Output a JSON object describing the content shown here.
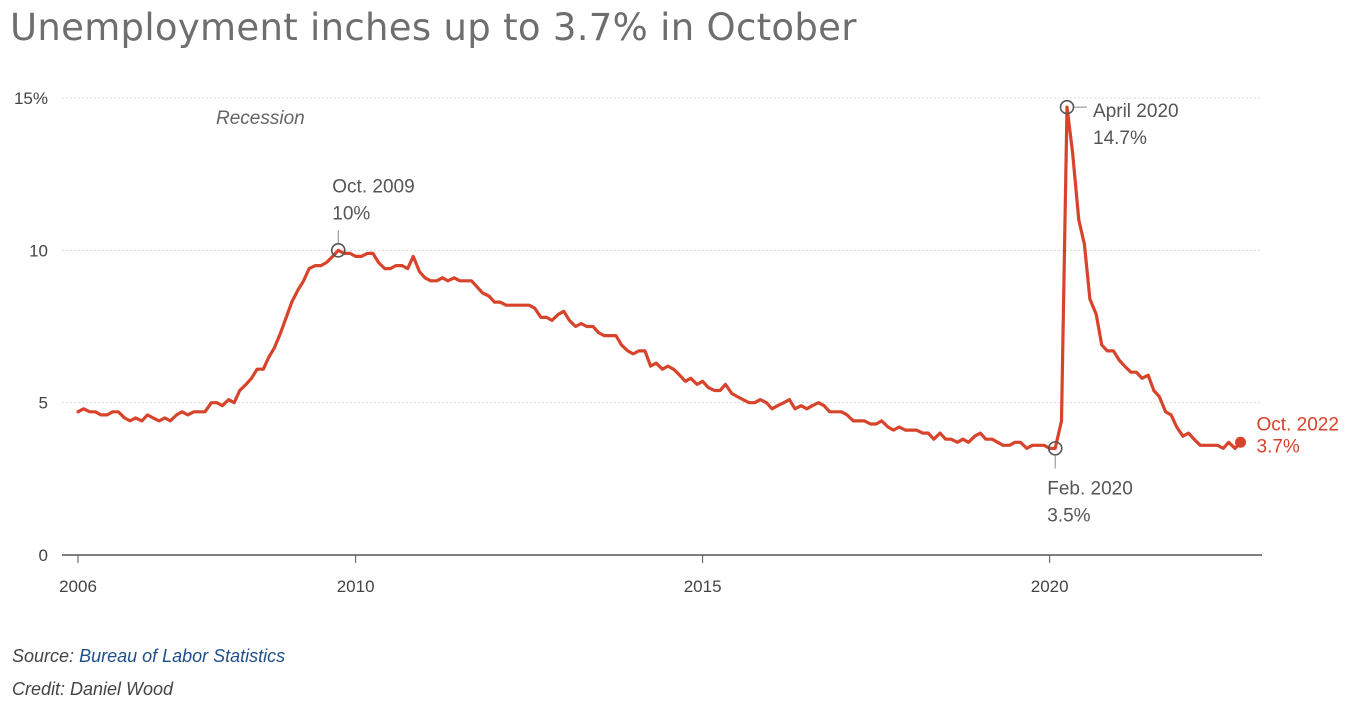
{
  "title": "Unemployment inches up to 3.7% in October",
  "footer": {
    "source_prefix": "Source:",
    "source_link": "Bureau of Labor Statistics",
    "credit": "Credit: Daniel Wood"
  },
  "colors": {
    "line": "#d8432b",
    "grid": "#d9d9d9",
    "axis": "#555555",
    "marker": "#555555"
  },
  "chart_data": {
    "type": "line",
    "title": "Unemployment inches up to 3.7% in October",
    "xlabel": "",
    "ylabel": "",
    "xlim": [
      2006.0,
      2022.8
    ],
    "ylim": [
      0,
      15
    ],
    "grid": true,
    "x_ticks": [
      {
        "value": 2006,
        "label": "2006"
      },
      {
        "value": 2010,
        "label": "2010"
      },
      {
        "value": 2015,
        "label": "2015"
      },
      {
        "value": 2020,
        "label": "2020"
      }
    ],
    "y_ticks": [
      {
        "value": 0,
        "label": "0"
      },
      {
        "value": 5,
        "label": "5"
      },
      {
        "value": 10,
        "label": "10"
      },
      {
        "value": 15,
        "label": "15%"
      }
    ],
    "band_label": "Recession",
    "series": [
      {
        "points": [
          [
            2006.0,
            4.7
          ],
          [
            2006.08,
            4.8
          ],
          [
            2006.17,
            4.7
          ],
          [
            2006.25,
            4.7
          ],
          [
            2006.33,
            4.6
          ],
          [
            2006.42,
            4.6
          ],
          [
            2006.5,
            4.7
          ],
          [
            2006.58,
            4.7
          ],
          [
            2006.67,
            4.5
          ],
          [
            2006.75,
            4.4
          ],
          [
            2006.83,
            4.5
          ],
          [
            2006.92,
            4.4
          ],
          [
            2007.0,
            4.6
          ],
          [
            2007.08,
            4.5
          ],
          [
            2007.17,
            4.4
          ],
          [
            2007.25,
            4.5
          ],
          [
            2007.33,
            4.4
          ],
          [
            2007.42,
            4.6
          ],
          [
            2007.5,
            4.7
          ],
          [
            2007.58,
            4.6
          ],
          [
            2007.67,
            4.7
          ],
          [
            2007.75,
            4.7
          ],
          [
            2007.83,
            4.7
          ],
          [
            2007.92,
            5.0
          ],
          [
            2008.0,
            5.0
          ],
          [
            2008.08,
            4.9
          ],
          [
            2008.17,
            5.1
          ],
          [
            2008.25,
            5.0
          ],
          [
            2008.33,
            5.4
          ],
          [
            2008.42,
            5.6
          ],
          [
            2008.5,
            5.8
          ],
          [
            2008.58,
            6.1
          ],
          [
            2008.67,
            6.1
          ],
          [
            2008.75,
            6.5
          ],
          [
            2008.83,
            6.8
          ],
          [
            2008.92,
            7.3
          ],
          [
            2009.0,
            7.8
          ],
          [
            2009.08,
            8.3
          ],
          [
            2009.17,
            8.7
          ],
          [
            2009.25,
            9.0
          ],
          [
            2009.33,
            9.4
          ],
          [
            2009.42,
            9.5
          ],
          [
            2009.5,
            9.5
          ],
          [
            2009.58,
            9.6
          ],
          [
            2009.67,
            9.8
          ],
          [
            2009.75,
            10.0
          ],
          [
            2009.83,
            9.9
          ],
          [
            2009.92,
            9.9
          ],
          [
            2010.0,
            9.8
          ],
          [
            2010.08,
            9.8
          ],
          [
            2010.17,
            9.9
          ],
          [
            2010.25,
            9.9
          ],
          [
            2010.33,
            9.6
          ],
          [
            2010.42,
            9.4
          ],
          [
            2010.5,
            9.4
          ],
          [
            2010.58,
            9.5
          ],
          [
            2010.67,
            9.5
          ],
          [
            2010.75,
            9.4
          ],
          [
            2010.83,
            9.8
          ],
          [
            2010.92,
            9.3
          ],
          [
            2011.0,
            9.1
          ],
          [
            2011.08,
            9.0
          ],
          [
            2011.17,
            9.0
          ],
          [
            2011.25,
            9.1
          ],
          [
            2011.33,
            9.0
          ],
          [
            2011.42,
            9.1
          ],
          [
            2011.5,
            9.0
          ],
          [
            2011.58,
            9.0
          ],
          [
            2011.67,
            9.0
          ],
          [
            2011.75,
            8.8
          ],
          [
            2011.83,
            8.6
          ],
          [
            2011.92,
            8.5
          ],
          [
            2012.0,
            8.3
          ],
          [
            2012.08,
            8.3
          ],
          [
            2012.17,
            8.2
          ],
          [
            2012.25,
            8.2
          ],
          [
            2012.33,
            8.2
          ],
          [
            2012.42,
            8.2
          ],
          [
            2012.5,
            8.2
          ],
          [
            2012.58,
            8.1
          ],
          [
            2012.67,
            7.8
          ],
          [
            2012.75,
            7.8
          ],
          [
            2012.83,
            7.7
          ],
          [
            2012.92,
            7.9
          ],
          [
            2013.0,
            8.0
          ],
          [
            2013.08,
            7.7
          ],
          [
            2013.17,
            7.5
          ],
          [
            2013.25,
            7.6
          ],
          [
            2013.33,
            7.5
          ],
          [
            2013.42,
            7.5
          ],
          [
            2013.5,
            7.3
          ],
          [
            2013.58,
            7.2
          ],
          [
            2013.67,
            7.2
          ],
          [
            2013.75,
            7.2
          ],
          [
            2013.83,
            6.9
          ],
          [
            2013.92,
            6.7
          ],
          [
            2014.0,
            6.6
          ],
          [
            2014.08,
            6.7
          ],
          [
            2014.17,
            6.7
          ],
          [
            2014.25,
            6.2
          ],
          [
            2014.33,
            6.3
          ],
          [
            2014.42,
            6.1
          ],
          [
            2014.5,
            6.2
          ],
          [
            2014.58,
            6.1
          ],
          [
            2014.67,
            5.9
          ],
          [
            2014.75,
            5.7
          ],
          [
            2014.83,
            5.8
          ],
          [
            2014.92,
            5.6
          ],
          [
            2015.0,
            5.7
          ],
          [
            2015.08,
            5.5
          ],
          [
            2015.17,
            5.4
          ],
          [
            2015.25,
            5.4
          ],
          [
            2015.33,
            5.6
          ],
          [
            2015.42,
            5.3
          ],
          [
            2015.5,
            5.2
          ],
          [
            2015.58,
            5.1
          ],
          [
            2015.67,
            5.0
          ],
          [
            2015.75,
            5.0
          ],
          [
            2015.83,
            5.1
          ],
          [
            2015.92,
            5.0
          ],
          [
            2016.0,
            4.8
          ],
          [
            2016.08,
            4.9
          ],
          [
            2016.17,
            5.0
          ],
          [
            2016.25,
            5.1
          ],
          [
            2016.33,
            4.8
          ],
          [
            2016.42,
            4.9
          ],
          [
            2016.5,
            4.8
          ],
          [
            2016.58,
            4.9
          ],
          [
            2016.67,
            5.0
          ],
          [
            2016.75,
            4.9
          ],
          [
            2016.83,
            4.7
          ],
          [
            2016.92,
            4.7
          ],
          [
            2017.0,
            4.7
          ],
          [
            2017.08,
            4.6
          ],
          [
            2017.17,
            4.4
          ],
          [
            2017.25,
            4.4
          ],
          [
            2017.33,
            4.4
          ],
          [
            2017.42,
            4.3
          ],
          [
            2017.5,
            4.3
          ],
          [
            2017.58,
            4.4
          ],
          [
            2017.67,
            4.2
          ],
          [
            2017.75,
            4.1
          ],
          [
            2017.83,
            4.2
          ],
          [
            2017.92,
            4.1
          ],
          [
            2018.0,
            4.1
          ],
          [
            2018.08,
            4.1
          ],
          [
            2018.17,
            4.0
          ],
          [
            2018.25,
            4.0
          ],
          [
            2018.33,
            3.8
          ],
          [
            2018.42,
            4.0
          ],
          [
            2018.5,
            3.8
          ],
          [
            2018.58,
            3.8
          ],
          [
            2018.67,
            3.7
          ],
          [
            2018.75,
            3.8
          ],
          [
            2018.83,
            3.7
          ],
          [
            2018.92,
            3.9
          ],
          [
            2019.0,
            4.0
          ],
          [
            2019.08,
            3.8
          ],
          [
            2019.17,
            3.8
          ],
          [
            2019.25,
            3.7
          ],
          [
            2019.33,
            3.6
          ],
          [
            2019.42,
            3.6
          ],
          [
            2019.5,
            3.7
          ],
          [
            2019.58,
            3.7
          ],
          [
            2019.67,
            3.5
          ],
          [
            2019.75,
            3.6
          ],
          [
            2019.83,
            3.6
          ],
          [
            2019.92,
            3.6
          ],
          [
            2020.0,
            3.5
          ],
          [
            2020.08,
            3.5
          ],
          [
            2020.17,
            4.4
          ],
          [
            2020.25,
            14.7
          ],
          [
            2020.33,
            13.2
          ],
          [
            2020.42,
            11.0
          ],
          [
            2020.5,
            10.2
          ],
          [
            2020.58,
            8.4
          ],
          [
            2020.67,
            7.9
          ],
          [
            2020.75,
            6.9
          ],
          [
            2020.83,
            6.7
          ],
          [
            2020.92,
            6.7
          ],
          [
            2021.0,
            6.4
          ],
          [
            2021.08,
            6.2
          ],
          [
            2021.17,
            6.0
          ],
          [
            2021.25,
            6.0
          ],
          [
            2021.33,
            5.8
          ],
          [
            2021.42,
            5.9
          ],
          [
            2021.5,
            5.4
          ],
          [
            2021.58,
            5.2
          ],
          [
            2021.67,
            4.7
          ],
          [
            2021.75,
            4.6
          ],
          [
            2021.83,
            4.2
          ],
          [
            2021.92,
            3.9
          ],
          [
            2022.0,
            4.0
          ],
          [
            2022.08,
            3.8
          ],
          [
            2022.17,
            3.6
          ],
          [
            2022.25,
            3.6
          ],
          [
            2022.33,
            3.6
          ],
          [
            2022.42,
            3.6
          ],
          [
            2022.5,
            3.5
          ],
          [
            2022.58,
            3.7
          ],
          [
            2022.67,
            3.5
          ],
          [
            2022.75,
            3.7
          ]
        ]
      }
    ],
    "annotations": [
      {
        "x": 2009.75,
        "y": 10.0,
        "label": "Oct. 2009",
        "value": "10%",
        "position": "above"
      },
      {
        "x": 2020.25,
        "y": 14.7,
        "label": "April 2020",
        "value": "14.7%",
        "position": "right"
      },
      {
        "x": 2020.08,
        "y": 3.5,
        "label": "Feb. 2020",
        "value": "3.5%",
        "position": "below"
      },
      {
        "x": 2022.75,
        "y": 3.7,
        "label": "Oct. 2022",
        "value": "3.7%",
        "position": "right",
        "highlight": true
      }
    ]
  }
}
